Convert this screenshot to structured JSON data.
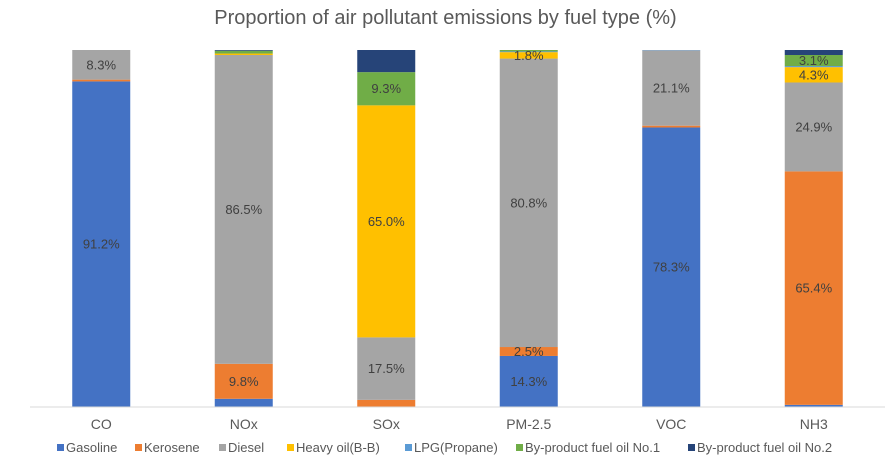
{
  "chart_data": {
    "type": "bar",
    "stacked": true,
    "title": "Proportion of air pollutant emissions by fuel type (%)",
    "categories": [
      "CO",
      "NOx",
      "SOx",
      "PM-2.5",
      "VOC",
      "NH3"
    ],
    "ylim": [
      0,
      100
    ],
    "legend_position": "bottom",
    "gridlines": false,
    "series": [
      {
        "name": "Gasoline",
        "color": "#4472C4",
        "values": [
          91.2,
          2.3,
          0.0,
          14.3,
          78.3,
          0.6
        ]
      },
      {
        "name": "Kerosene",
        "color": "#ED7D31",
        "values": [
          0.5,
          9.8,
          2.0,
          2.5,
          0.5,
          65.4
        ]
      },
      {
        "name": "Diesel",
        "color": "#A5A5A5",
        "values": [
          8.3,
          86.5,
          17.5,
          80.8,
          21.1,
          24.9
        ]
      },
      {
        "name": "Heavy oil(B-B)",
        "color": "#FFC000",
        "values": [
          0.0,
          0.4,
          65.0,
          1.8,
          0.0,
          4.3
        ]
      },
      {
        "name": "LPG(Propane)",
        "color": "#5B9BD5",
        "values": [
          0.0,
          0.0,
          0.0,
          0.2,
          0.1,
          0.3
        ]
      },
      {
        "name": "By-product fuel oil No.1",
        "color": "#70AD47",
        "values": [
          0.0,
          0.8,
          9.3,
          0.4,
          0.0,
          3.1
        ]
      },
      {
        "name": "By-product fuel oil No.2",
        "color": "#264478",
        "values": [
          0.0,
          0.2,
          6.2,
          0.0,
          0.0,
          1.4
        ]
      }
    ],
    "data_labels": [
      {
        "category": "CO",
        "series": "Gasoline",
        "text": "91.2%"
      },
      {
        "category": "CO",
        "series": "Diesel",
        "text": "8.3%"
      },
      {
        "category": "NOx",
        "series": "Kerosene",
        "text": "9.8%"
      },
      {
        "category": "NOx",
        "series": "Diesel",
        "text": "86.5%"
      },
      {
        "category": "SOx",
        "series": "Diesel",
        "text": "17.5%"
      },
      {
        "category": "SOx",
        "series": "Heavy oil(B-B)",
        "text": "65.0%"
      },
      {
        "category": "SOx",
        "series": "By-product fuel oil No.1",
        "text": "9.3%"
      },
      {
        "category": "PM-2.5",
        "series": "Gasoline",
        "text": "14.3%"
      },
      {
        "category": "PM-2.5",
        "series": "Kerosene",
        "text": "2.5%"
      },
      {
        "category": "PM-2.5",
        "series": "Diesel",
        "text": "80.8%"
      },
      {
        "category": "PM-2.5",
        "series": "Heavy oil(B-B)",
        "text": "1.8%"
      },
      {
        "category": "VOC",
        "series": "Gasoline",
        "text": "78.3%"
      },
      {
        "category": "VOC",
        "series": "Diesel",
        "text": "21.1%"
      },
      {
        "category": "NH3",
        "series": "Kerosene",
        "text": "65.4%"
      },
      {
        "category": "NH3",
        "series": "Diesel",
        "text": "24.9%"
      },
      {
        "category": "NH3",
        "series": "Heavy oil(B-B)",
        "text": "4.3%"
      },
      {
        "category": "NH3",
        "series": "By-product fuel oil No.1",
        "text": "3.1%"
      }
    ]
  }
}
